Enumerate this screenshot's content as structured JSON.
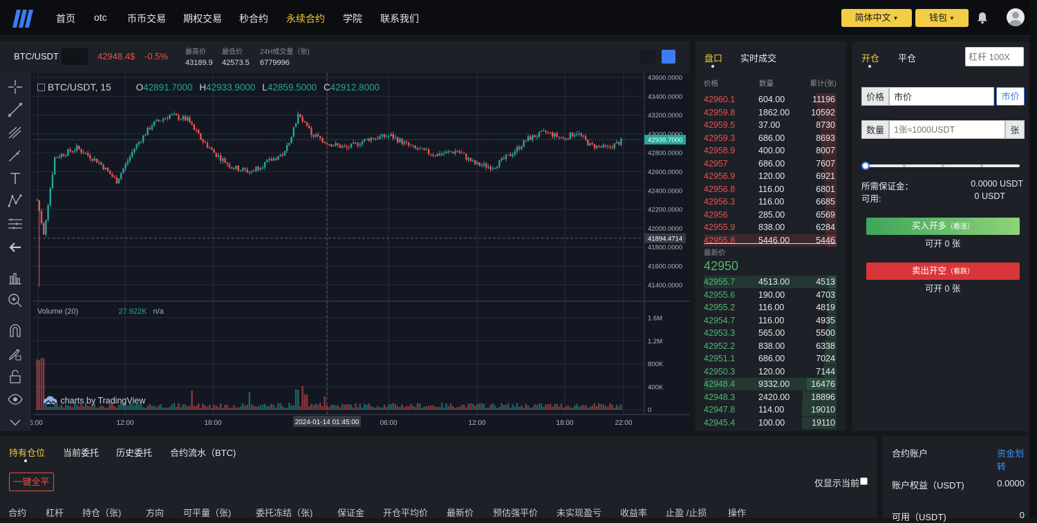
{
  "nav": {
    "items": [
      "首页",
      "otc",
      "币币交易",
      "期权交易",
      "秒合约",
      "永续合约",
      "学院",
      "联系我们"
    ],
    "active_index": 5,
    "lang_label": "简体中文",
    "wallet_label": "钱包"
  },
  "ticker": {
    "pair": "BTC/USDT",
    "price": "42948.4$",
    "change": "-0.5%",
    "high_label": "最高价",
    "high": "43189.9",
    "low_label": "最低价",
    "low": "42573.5",
    "vol_label": "24H成交量（张)",
    "vol": "6779996"
  },
  "chart": {
    "legend_symbol": "BTC/USDT, 15",
    "legend_o_lbl": "O",
    "legend_o": "42891.7000",
    "legend_h_lbl": "H",
    "legend_h": "42933.9000",
    "legend_l_lbl": "L",
    "legend_l": "42859.5000",
    "legend_c_lbl": "C",
    "legend_c": "42912.8000",
    "volume_label": "Volume (20)",
    "volume_value": "27.922K",
    "volume_na": "n/a",
    "watermark": "charts by TradingView",
    "price_ticks": [
      "43600.0000",
      "43400.0000",
      "43200.0000",
      "43000.0000",
      "42800.0000",
      "42600.0000",
      "42400.0000",
      "42200.0000",
      "42000.0000",
      "41800.0000",
      "41600.0000",
      "41400.0000"
    ],
    "current_price_tag": "42939.7000",
    "crosshair_price_tag": "41894.4714",
    "vol_ticks": [
      "1.6M",
      "1.2M",
      "800K",
      "400K",
      "0"
    ],
    "time_ticks": [
      "6:00",
      "12:00",
      "18:00",
      "06:00",
      "12:00",
      "18:00",
      "22:00"
    ],
    "crosshair_time": "2024-01-14 01:45:00",
    "up_color": "#26a69a",
    "down_color": "#ef5350"
  },
  "orderbook": {
    "tab_book": "盘口",
    "tab_trades": "实时成交",
    "hdr_price": "价格",
    "hdr_qty": "数量",
    "hdr_total": "累计(张)",
    "asks": [
      [
        "42960.1",
        "604.00",
        "11196"
      ],
      [
        "42959.8",
        "1862.00",
        "10592"
      ],
      [
        "42959.5",
        "37.00",
        "8730"
      ],
      [
        "42959.3",
        "686.00",
        "8693"
      ],
      [
        "42958.9",
        "400.00",
        "8007"
      ],
      [
        "42957",
        "686.00",
        "7607"
      ],
      [
        "42956.9",
        "120.00",
        "6921"
      ],
      [
        "42956.8",
        "116.00",
        "6801"
      ],
      [
        "42956.3",
        "116.00",
        "6685"
      ],
      [
        "42956",
        "285.00",
        "6569"
      ],
      [
        "42955.9",
        "838.00",
        "6284"
      ],
      [
        "42955.8",
        "5446.00",
        "5446"
      ]
    ],
    "last_label": "最新价",
    "last_price": "42950",
    "bids": [
      [
        "42955.7",
        "4513.00",
        "4513"
      ],
      [
        "42955.6",
        "190.00",
        "4703"
      ],
      [
        "42955.2",
        "116.00",
        "4819"
      ],
      [
        "42954.7",
        "116.00",
        "4935"
      ],
      [
        "42953.3",
        "565.00",
        "5500"
      ],
      [
        "42952.2",
        "838.00",
        "6338"
      ],
      [
        "42951.1",
        "686.00",
        "7024"
      ],
      [
        "42950.3",
        "120.00",
        "7144"
      ],
      [
        "42948.4",
        "9332.00",
        "16476"
      ],
      [
        "42948.3",
        "2420.00",
        "18896"
      ],
      [
        "42947.8",
        "114.00",
        "19010"
      ],
      [
        "42945.4",
        "100.00",
        "19110"
      ]
    ],
    "ask_color": "#e8514d",
    "bid_color": "#4cb774"
  },
  "trade": {
    "tab_open": "开仓",
    "tab_close": "平仓",
    "leverage_placeholder": "杠杆 100X",
    "price_label": "价格",
    "price_value": "市价",
    "market_btn": "市价",
    "qty_label": "数量",
    "qty_placeholder": "1张≈1000USDT",
    "qty_unit": "张",
    "margin_label": "所需保证金：",
    "margin_value": "0.0000 USDT",
    "avail_label": "可用:",
    "avail_value": "0 USDT",
    "buy_btn": "买入开多",
    "buy_sub": "（看涨）",
    "buy_can": "可开 0 张",
    "sell_btn": "卖出开空",
    "sell_sub": "（看跌）",
    "sell_can": "可开 0 张"
  },
  "bottom": {
    "tabs": [
      "持有仓位",
      "当前委托",
      "历史委托",
      "合约流水（BTC)"
    ],
    "close_all": "一键全平",
    "only_current": "仅显示当前",
    "columns": [
      "合约",
      "杠杆",
      "持仓（张)",
      "方向",
      "可平量（张)",
      "委托冻结（张)",
      "保证金",
      "开仓平均价",
      "最新价",
      "预估强平价",
      "未实现盈亏",
      "收益率",
      "止盈 /止损",
      "操作"
    ]
  },
  "account": {
    "title": "合约账户",
    "transfer": "资金划转",
    "equity_label": "账户权益（USDT)",
    "equity_value": "0.0000",
    "avail_label": "可用（USDT)",
    "avail_value": "0"
  }
}
